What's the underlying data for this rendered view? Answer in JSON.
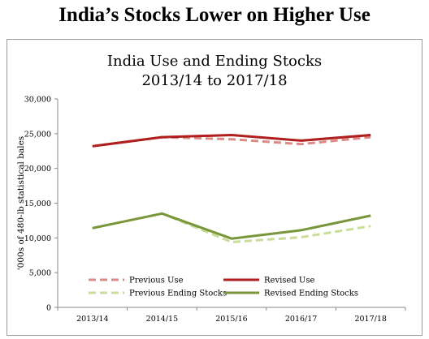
{
  "headline": "India’s Stocks Lower on Higher Use",
  "chart_data": {
    "type": "line",
    "title": [
      "India Use and Ending Stocks",
      "2013/14 to 2017/18"
    ],
    "xlabel": "",
    "ylabel": "'000s of 480-lb statistical bales",
    "categories": [
      "2013/14",
      "2014/15",
      "2015/16",
      "2016/17",
      "2017/18"
    ],
    "ylim": [
      0,
      30000
    ],
    "yticks": [
      0,
      5000,
      10000,
      15000,
      20000,
      25000,
      30000
    ],
    "ytick_labels": [
      "0",
      "5,000",
      "10,000",
      "15,000",
      "20,000",
      "25,000",
      "30,000"
    ],
    "grid": false,
    "legend_position": "bottom-inside",
    "series": [
      {
        "name": "Previous Use",
        "values": [
          23200,
          24500,
          24200,
          23500,
          24500
        ],
        "color": "#e08a84",
        "dashed": true
      },
      {
        "name": "Revised Use",
        "values": [
          23200,
          24500,
          24800,
          24000,
          24800
        ],
        "color": "#b01e1e",
        "dashed": false
      },
      {
        "name": "Previous Ending Stocks",
        "values": [
          11400,
          13500,
          9400,
          10100,
          11700
        ],
        "color": "#c9dc98",
        "dashed": true
      },
      {
        "name": "Revised Ending Stocks",
        "values": [
          11400,
          13500,
          9900,
          11100,
          13200
        ],
        "color": "#79963b",
        "dashed": false
      }
    ]
  }
}
